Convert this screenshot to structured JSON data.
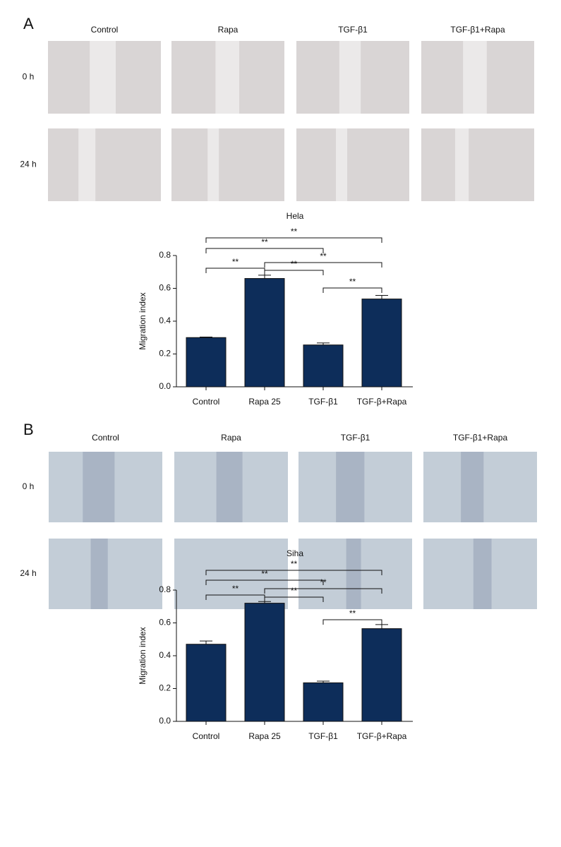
{
  "panels": [
    {
      "label": "A",
      "columns": [
        "Control",
        "Rapa",
        "TGF-β1",
        "TGF-β1+Rapa"
      ],
      "rows": [
        "0 h",
        "24 h"
      ]
    },
    {
      "label": "B",
      "columns": [
        "Control",
        "Rapa",
        "TGF-β1",
        "TGF-β1+Rapa"
      ],
      "rows": [
        "0 h",
        "24 h"
      ]
    }
  ],
  "chart_data": [
    {
      "type": "bar",
      "title": "Hela",
      "y_label": "Migration index",
      "categories": [
        "Control",
        "Rapa 25",
        "TGF-β1",
        "TGF-β+Rapa"
      ],
      "values": [
        0.3,
        0.66,
        0.255,
        0.535
      ],
      "errors": [
        0.003,
        0.02,
        0.012,
        0.022
      ],
      "color": "#0d2d5a",
      "ylim": [
        0,
        0.8
      ],
      "yticks": [
        {
          "value": 0,
          "label": "0.0"
        },
        {
          "value": 0.2,
          "label": "0.2"
        },
        {
          "value": 0.4,
          "label": "0.4"
        },
        {
          "value": 0.6,
          "label": "0.6"
        },
        {
          "value": 0.8,
          "label": "0.8"
        }
      ],
      "comparisons": [
        {
          "pair": [
            0,
            3
          ],
          "label": "**"
        },
        {
          "pair": [
            0,
            2
          ],
          "label": "**"
        },
        {
          "pair": [
            0,
            1
          ],
          "label": "**"
        },
        {
          "pair": [
            1,
            2
          ],
          "label": "**"
        },
        {
          "pair": [
            1,
            3
          ],
          "label": "**"
        },
        {
          "pair": [
            2,
            3
          ],
          "label": "**"
        }
      ]
    },
    {
      "type": "bar",
      "title": "Siha",
      "y_label": "Migration index",
      "categories": [
        "Control",
        "Rapa 25",
        "TGF-β1",
        "TGF-β+Rapa"
      ],
      "values": [
        0.47,
        0.72,
        0.235,
        0.565
      ],
      "errors": [
        0.02,
        0.01,
        0.01,
        0.025
      ],
      "color": "#0d2d5a",
      "ylim": [
        0,
        0.8
      ],
      "yticks": [
        {
          "value": 0,
          "label": "0.0"
        },
        {
          "value": 0.2,
          "label": "0.2"
        },
        {
          "value": 0.4,
          "label": "0.4"
        },
        {
          "value": 0.6,
          "label": "0.6"
        },
        {
          "value": 0.8,
          "label": "0.8"
        }
      ],
      "comparisons": [
        {
          "pair": [
            0,
            3
          ],
          "label": "**"
        },
        {
          "pair": [
            0,
            2
          ],
          "label": "**"
        },
        {
          "pair": [
            0,
            1
          ],
          "label": "**"
        },
        {
          "pair": [
            1,
            2
          ],
          "label": "**"
        },
        {
          "pair": [
            1,
            3
          ],
          "label": "**"
        },
        {
          "pair": [
            2,
            3
          ],
          "label": "**"
        }
      ]
    }
  ]
}
